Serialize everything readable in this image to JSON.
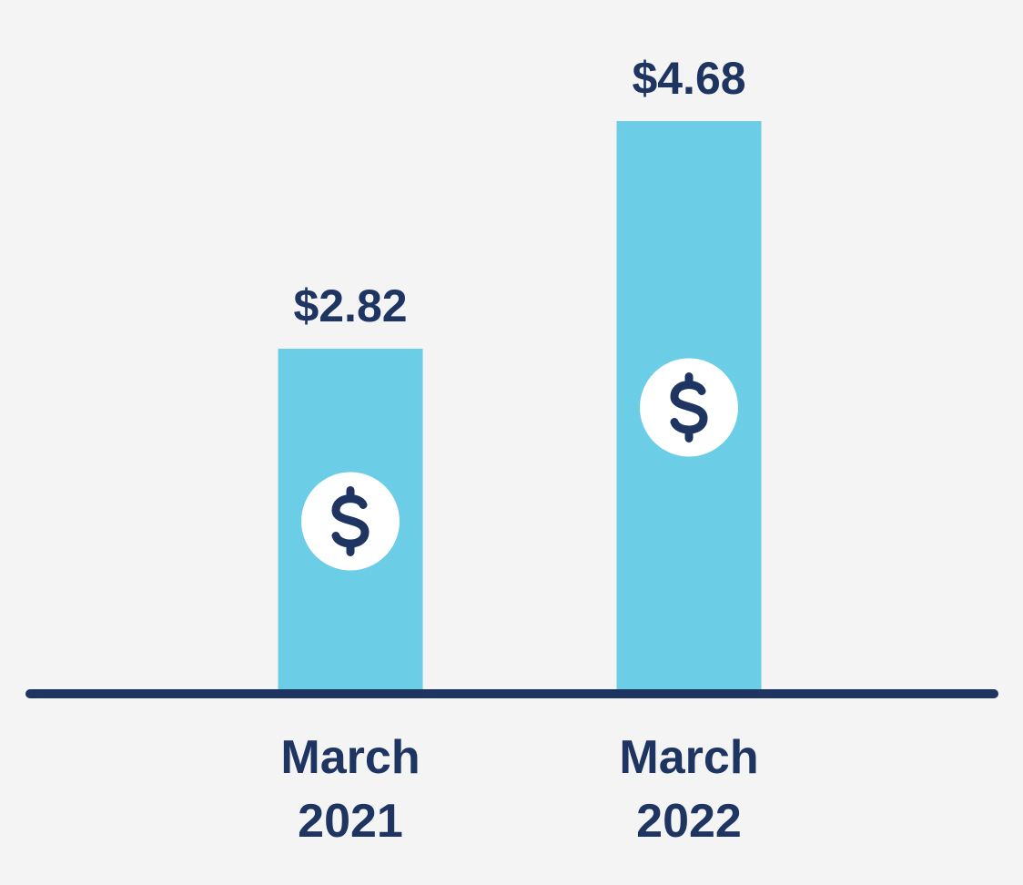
{
  "chart_data": {
    "type": "bar",
    "categories": [
      "March 2021",
      "March 2022"
    ],
    "values": [
      2.82,
      4.68
    ],
    "value_labels": [
      "$2.82",
      "$4.68"
    ],
    "color": "#6bcde6"
  }
}
